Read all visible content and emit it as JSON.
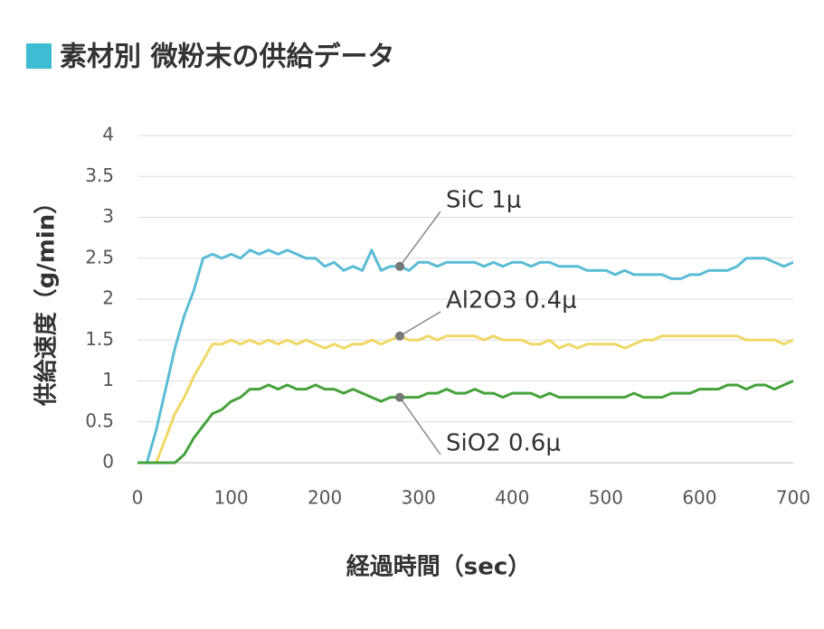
{
  "chart_data": {
    "type": "line",
    "title": "素材別 微粉末の供給データ",
    "title_marker_color": "#3dbcd3",
    "y_label": "供給速度（g/min）",
    "x_label": "経過時間（sec）",
    "grid": true,
    "x": [
      0,
      10,
      20,
      30,
      40,
      50,
      60,
      70,
      80,
      90,
      100,
      110,
      120,
      130,
      140,
      150,
      160,
      170,
      180,
      190,
      200,
      210,
      220,
      230,
      240,
      250,
      260,
      270,
      280,
      290,
      300,
      310,
      320,
      330,
      340,
      350,
      360,
      370,
      380,
      390,
      400,
      410,
      420,
      430,
      440,
      450,
      460,
      470,
      480,
      490,
      500,
      510,
      520,
      530,
      540,
      550,
      560,
      570,
      580,
      590,
      600,
      610,
      620,
      630,
      640,
      650,
      660,
      670,
      680,
      690,
      700
    ],
    "xlim": [
      0,
      700
    ],
    "xticks": [
      0,
      100,
      200,
      300,
      400,
      500,
      600,
      700
    ],
    "ylim": [
      0,
      4
    ],
    "yticks": [
      0,
      0.5,
      1,
      1.5,
      2,
      2.5,
      3,
      3.5,
      4
    ],
    "series": [
      {
        "name": "SiC 1μ",
        "color": "#5bbcd6",
        "values": [
          0,
          0,
          0.4,
          0.9,
          1.4,
          1.8,
          2.1,
          2.5,
          2.55,
          2.5,
          2.55,
          2.5,
          2.6,
          2.55,
          2.6,
          2.55,
          2.6,
          2.55,
          2.5,
          2.5,
          2.4,
          2.45,
          2.35,
          2.4,
          2.35,
          2.6,
          2.35,
          2.4,
          2.4,
          2.35,
          2.45,
          2.45,
          2.4,
          2.45,
          2.45,
          2.45,
          2.45,
          2.4,
          2.45,
          2.4,
          2.45,
          2.45,
          2.4,
          2.45,
          2.45,
          2.4,
          2.4,
          2.4,
          2.35,
          2.35,
          2.35,
          2.3,
          2.35,
          2.3,
          2.3,
          2.3,
          2.3,
          2.25,
          2.25,
          2.3,
          2.3,
          2.35,
          2.35,
          2.35,
          2.4,
          2.5,
          2.5,
          2.5,
          2.45,
          2.4,
          2.45
        ]
      },
      {
        "name": "Al2O3 0.4μ",
        "color": "#f0d866",
        "values": [
          0,
          0,
          0,
          0.3,
          0.6,
          0.8,
          1.05,
          1.25,
          1.45,
          1.45,
          1.5,
          1.45,
          1.5,
          1.45,
          1.5,
          1.45,
          1.5,
          1.45,
          1.5,
          1.45,
          1.4,
          1.45,
          1.4,
          1.45,
          1.45,
          1.5,
          1.45,
          1.5,
          1.55,
          1.5,
          1.5,
          1.55,
          1.5,
          1.55,
          1.55,
          1.55,
          1.55,
          1.5,
          1.55,
          1.5,
          1.5,
          1.5,
          1.45,
          1.45,
          1.5,
          1.4,
          1.45,
          1.4,
          1.45,
          1.45,
          1.45,
          1.45,
          1.4,
          1.45,
          1.5,
          1.5,
          1.55,
          1.55,
          1.55,
          1.55,
          1.55,
          1.55,
          1.55,
          1.55,
          1.55,
          1.5,
          1.5,
          1.5,
          1.5,
          1.45,
          1.5
        ]
      },
      {
        "name": "SiO2 0.6μ",
        "color": "#45a23a",
        "values": [
          0,
          0,
          0,
          0,
          0,
          0.1,
          0.3,
          0.45,
          0.6,
          0.65,
          0.75,
          0.8,
          0.9,
          0.9,
          0.95,
          0.9,
          0.95,
          0.9,
          0.9,
          0.95,
          0.9,
          0.9,
          0.85,
          0.9,
          0.85,
          0.8,
          0.75,
          0.8,
          0.8,
          0.8,
          0.8,
          0.85,
          0.85,
          0.9,
          0.85,
          0.85,
          0.9,
          0.85,
          0.85,
          0.8,
          0.85,
          0.85,
          0.85,
          0.8,
          0.85,
          0.8,
          0.8,
          0.8,
          0.8,
          0.8,
          0.8,
          0.8,
          0.8,
          0.85,
          0.8,
          0.8,
          0.8,
          0.85,
          0.85,
          0.85,
          0.9,
          0.9,
          0.9,
          0.95,
          0.95,
          0.9,
          0.95,
          0.95,
          0.9,
          0.95,
          1.0
        ]
      }
    ]
  }
}
